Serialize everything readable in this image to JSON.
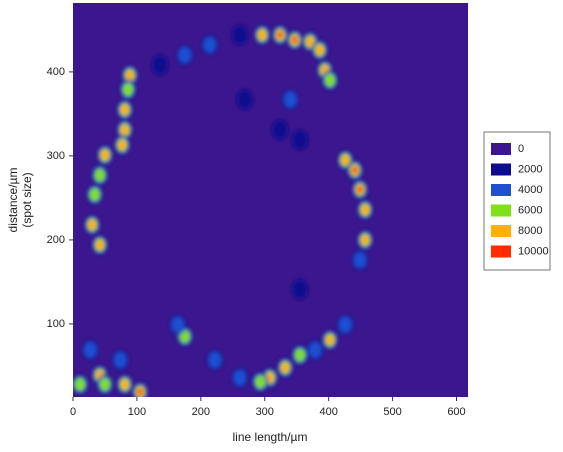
{
  "chart_data": {
    "type": "heatmap",
    "xlabel": "line length/µm",
    "ylabel_lines": [
      "distance/µm",
      "(spot size)"
    ],
    "xlim": [
      0,
      618
    ],
    "ylim": [
      13,
      482
    ],
    "xticks": [
      0,
      100,
      200,
      300,
      400,
      500,
      600
    ],
    "yticks": [
      100,
      200,
      300,
      400
    ],
    "levels": [
      0,
      2000,
      4000,
      6000,
      8000,
      10000
    ],
    "level_colors": [
      "#3c168e",
      "#0c0a8e",
      "#1f50d2",
      "#80e01c",
      "#ffb000",
      "#ff2a00"
    ],
    "x": [
      296,
      324,
      347,
      371,
      386,
      394,
      402,
      214,
      261,
      175,
      136,
      89,
      86,
      81,
      81,
      77,
      50,
      42,
      34,
      30,
      42,
      426,
      441,
      449,
      457,
      457,
      449,
      426,
      402,
      379,
      355,
      332,
      308,
      293,
      261,
      222,
      175,
      164,
      27,
      42,
      50,
      81,
      105,
      11,
      74,
      340,
      324,
      355,
      269,
      355
    ],
    "y": [
      444,
      444,
      438,
      436,
      426,
      402,
      390,
      432,
      444,
      420,
      408,
      396,
      379,
      355,
      331,
      313,
      301,
      277,
      254,
      218,
      194,
      295,
      283,
      260,
      236,
      200,
      176,
      99,
      81,
      69,
      63,
      48,
      36,
      31,
      36,
      57,
      85,
      99,
      69,
      39,
      28,
      28,
      19,
      28,
      57,
      367,
      331,
      319,
      367,
      141
    ],
    "values": [
      9000,
      10000,
      10000,
      9000,
      8000,
      9000,
      7000,
      4000,
      3000,
      4000,
      3000,
      8000,
      7000,
      9000,
      9000,
      8000,
      9000,
      6000,
      6000,
      9000,
      8000,
      9000,
      10000,
      10000,
      9000,
      8000,
      4000,
      5000,
      8000,
      5000,
      6000,
      8000,
      9000,
      6000,
      5000,
      4000,
      7000,
      4000,
      5000,
      8000,
      7000,
      9000,
      10000,
      6000,
      4000,
      4000,
      3000,
      3000,
      2000,
      2000
    ]
  }
}
